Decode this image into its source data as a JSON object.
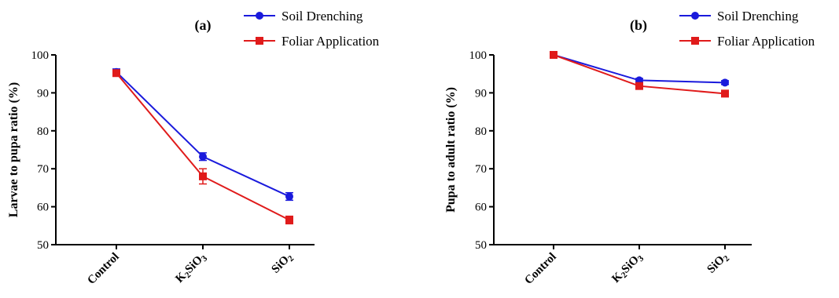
{
  "chart_data": [
    {
      "type": "line",
      "panel_label": "(a)",
      "categories": [
        "Control",
        "K2SiO3",
        "SiO2"
      ],
      "ylabel": "Larvae to pupa ratio (%)",
      "ylim": [
        50,
        100
      ],
      "yticks": [
        "50",
        "60",
        "70",
        "80",
        "90",
        "100"
      ],
      "legend_position": "top-right",
      "series": [
        {
          "name": "Soil Drenching",
          "color": "#1a1adc",
          "marker": "circle",
          "values": [
            95.5,
            73.2,
            62.7
          ],
          "errors": [
            0.8,
            1.0,
            1.0
          ]
        },
        {
          "name": "Foliar Application",
          "color": "#e01b1b",
          "marker": "square",
          "values": [
            95.2,
            68.0,
            56.5
          ],
          "errors": [
            0.8,
            2.0,
            1.0
          ]
        }
      ]
    },
    {
      "type": "line",
      "panel_label": "(b)",
      "categories": [
        "Control",
        "K2SiO3",
        "SiO2"
      ],
      "ylabel": "Pupa to adult ratio (%)",
      "ylim": [
        50,
        100
      ],
      "yticks": [
        "50",
        "60",
        "70",
        "80",
        "90",
        "100"
      ],
      "legend_position": "top-right",
      "series": [
        {
          "name": "Soil Drenching",
          "color": "#1a1adc",
          "marker": "circle",
          "values": [
            100,
            93.3,
            92.7
          ],
          "errors": [
            0.3,
            0.5,
            0.5
          ]
        },
        {
          "name": "Foliar Application",
          "color": "#e01b1b",
          "marker": "square",
          "values": [
            100,
            91.8,
            89.8
          ],
          "errors": [
            0.3,
            0.5,
            0.5
          ]
        }
      ]
    }
  ]
}
